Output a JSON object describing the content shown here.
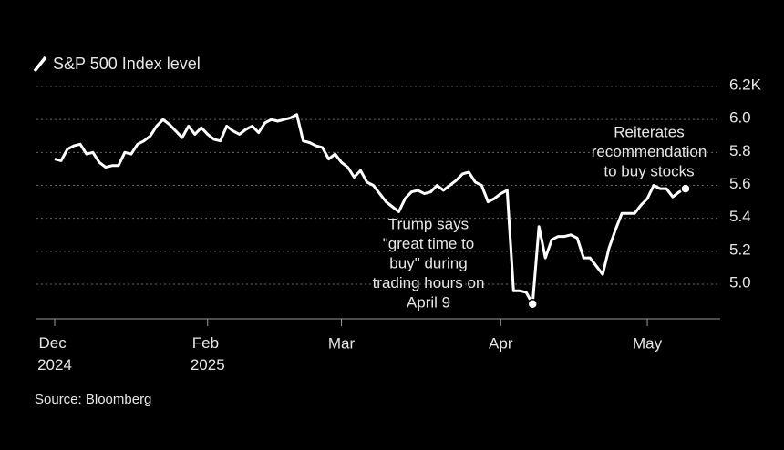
{
  "chart_data": {
    "type": "line",
    "legend": "S&P 500 Index level",
    "source": "Source: Bloomberg",
    "color": "#ffffff",
    "grid": true,
    "ylim": [
      4.79,
      6.2
    ],
    "yticks": [
      {
        "value": 6.2,
        "label": "6.2K"
      },
      {
        "value": 6,
        "label": "6.0"
      },
      5.8,
      5.6,
      5.4,
      5.2,
      {
        "value": 5,
        "label": "5.0"
      }
    ],
    "categories": [
      "Dec 2024",
      null,
      null,
      null,
      null,
      null,
      null,
      null,
      null,
      null,
      null,
      null,
      null,
      null,
      null,
      null,
      null,
      null,
      null,
      null,
      null,
      null,
      null,
      null,
      "Feb 2025",
      null,
      null,
      null,
      null,
      null,
      null,
      null,
      null,
      null,
      null,
      null,
      null,
      null,
      null,
      null,
      null,
      null,
      null,
      null,
      null,
      "Mar",
      null,
      null,
      null,
      null,
      null,
      null,
      null,
      null,
      null,
      null,
      null,
      null,
      null,
      null,
      null,
      null,
      null,
      null,
      null,
      null,
      null,
      null,
      null,
      null,
      "Apr",
      null,
      null,
      null,
      null,
      null,
      null,
      null,
      null,
      null,
      null,
      null,
      null,
      null,
      null,
      null,
      null,
      null,
      null,
      null,
      null,
      null,
      null,
      "May",
      null,
      null,
      null,
      null,
      null,
      null
    ],
    "series": [
      {
        "name": "S&P 500 Index level",
        "color": "#ffffff",
        "values": [
          5.76,
          5.75,
          5.82,
          5.84,
          5.85,
          5.79,
          5.8,
          5.74,
          5.71,
          5.72,
          5.72,
          5.8,
          5.79,
          5.85,
          5.87,
          5.9,
          5.96,
          6.0,
          5.97,
          5.93,
          5.89,
          5.96,
          5.91,
          5.95,
          5.91,
          5.88,
          5.87,
          5.96,
          5.93,
          5.91,
          5.94,
          5.96,
          5.92,
          5.98,
          6.0,
          5.99,
          6.0,
          6.01,
          6.03,
          5.87,
          5.86,
          5.84,
          5.83,
          5.76,
          5.79,
          5.74,
          5.71,
          5.65,
          5.69,
          5.62,
          5.6,
          5.55,
          5.5,
          5.47,
          5.44,
          5.52,
          5.56,
          5.57,
          5.55,
          5.56,
          5.6,
          5.57,
          5.6,
          5.63,
          5.67,
          5.68,
          5.62,
          5.6,
          5.5,
          5.52,
          5.55,
          5.57,
          4.96,
          4.96,
          4.95,
          4.88,
          5.35,
          5.16,
          5.27,
          5.29,
          5.29,
          5.3,
          5.28,
          5.16,
          5.16,
          5.11,
          5.06,
          5.22,
          5.33,
          5.43,
          5.43,
          5.43,
          5.48,
          5.52,
          5.6,
          5.58,
          5.58,
          5.53,
          5.56,
          5.58
        ]
      }
    ],
    "annotations": [
      [
        "Trump says",
        "\"great time to",
        "buy\" during",
        "trading hours on",
        "April 9"
      ],
      [
        "Reiterates",
        "recommendation",
        "to buy stocks"
      ]
    ]
  }
}
